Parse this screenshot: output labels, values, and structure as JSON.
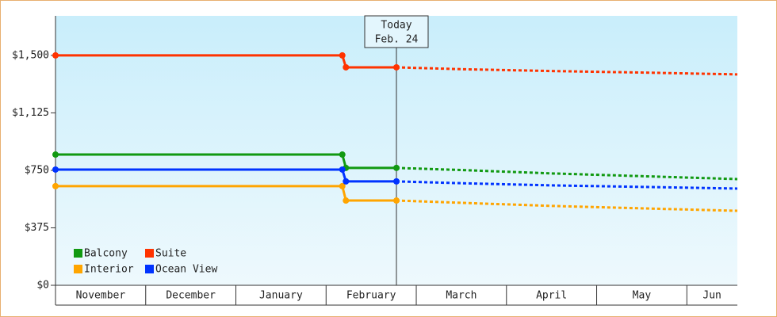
{
  "chart_data": {
    "type": "line",
    "x": [
      0,
      3.18,
      3.22,
      3.78,
      4.5,
      5.5,
      6.5,
      7.56
    ],
    "xlim": [
      0,
      7.56
    ],
    "xticks": [
      0,
      1,
      2,
      3,
      4,
      5,
      6,
      7
    ],
    "categories": [
      "November",
      "December",
      "January",
      "February",
      "March",
      "April",
      "May",
      "Jun"
    ],
    "ylim": [
      0,
      1758
    ],
    "yticks": [
      {
        "value": 0,
        "label": "$0"
      },
      {
        "value": 375,
        "label": "$375"
      },
      {
        "value": 750,
        "label": "$750"
      },
      {
        "value": 1125,
        "label": "$1,125"
      },
      {
        "value": 1500,
        "label": "$1,500"
      }
    ],
    "today": {
      "x": 3.78,
      "label": "Today",
      "date": "Feb. 24"
    },
    "legend": "bottom-left",
    "series": [
      {
        "name": "Balcony",
        "color": "#119911",
        "values": [
          853,
          853,
          766,
          766,
          752,
          730,
          712,
          693
        ]
      },
      {
        "name": "Suite",
        "color": "#ff3300",
        "values": [
          1500,
          1500,
          1422,
          1422,
          1410,
          1398,
          1388,
          1376
        ]
      },
      {
        "name": "Interior",
        "color": "#ffa500",
        "values": [
          647,
          647,
          553,
          553,
          538,
          518,
          502,
          486
        ]
      },
      {
        "name": "Ocean View",
        "color": "#0033ff",
        "values": [
          755,
          755,
          678,
          678,
          666,
          652,
          642,
          631
        ]
      }
    ]
  }
}
